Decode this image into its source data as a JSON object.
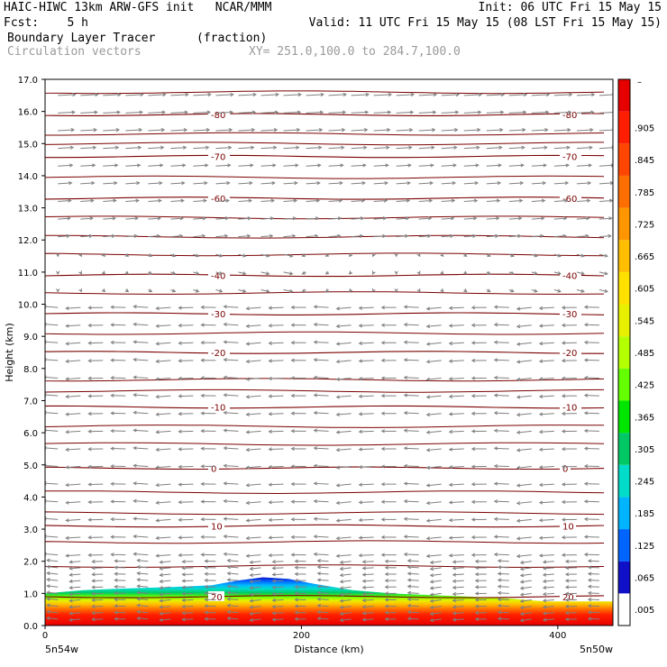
{
  "header": {
    "line1_left": "HAIC-HIWC 13km ARW-GFS init   NCAR/MMM",
    "line1_right": "Init: 06 UTC Fri 15 May 15",
    "line2_left": "Fcst:    5 h",
    "line2_right": "Valid: 11 UTC Fri 15 May 15 (08 LST Fri 15 May 15)",
    "field_name": "Boundary Layer Tracer",
    "field_units": "(fraction)",
    "overlay_name": "Circulation vectors",
    "xy_range": "XY= 251.0,100.0 to 284.7,100.0"
  },
  "chart_data": {
    "type": "heatmap",
    "xlabel": "Distance (km)",
    "ylabel": "Height (km)",
    "xlim": [
      0,
      443
    ],
    "ylim": [
      0,
      17
    ],
    "x_ticks": [
      0,
      200,
      400
    ],
    "y_ticks": [
      "0.0",
      "1.0",
      "2.0",
      "3.0",
      "4.0",
      "5.0",
      "6.0",
      "7.0",
      "8.0",
      "9.0",
      "10.0",
      "11.0",
      "12.0",
      "13.0",
      "14.0",
      "15.0",
      "16.0",
      "17.0"
    ],
    "x_end_labels": [
      "5n54w",
      "5n50w"
    ],
    "colorbar_labels": [
      ".005",
      ".065",
      ".125",
      ".185",
      ".245",
      ".305",
      ".365",
      ".425",
      ".485",
      ".545",
      ".605",
      ".665",
      ".725",
      ".785",
      ".845",
      ".905"
    ],
    "colorbar_top_label": "–",
    "colorbar_colors": [
      "#ffffff",
      "#1010c8",
      "#0064ff",
      "#00b4ff",
      "#00dcc8",
      "#00c864",
      "#00e600",
      "#64ff00",
      "#b4ff00",
      "#e6f000",
      "#ffe100",
      "#ffbe00",
      "#ff9600",
      "#ff6e00",
      "#ff4600",
      "#ff1e00",
      "#e60000"
    ],
    "tracer_top_km": [
      [
        0,
        1.0
      ],
      [
        30,
        1.1
      ],
      [
        60,
        1.15
      ],
      [
        100,
        1.2
      ],
      [
        130,
        1.25
      ],
      [
        150,
        1.4
      ],
      [
        170,
        1.5
      ],
      [
        190,
        1.45
      ],
      [
        210,
        1.3
      ],
      [
        240,
        1.1
      ],
      [
        270,
        1.0
      ],
      [
        300,
        0.95
      ],
      [
        330,
        0.9
      ],
      [
        360,
        0.85
      ],
      [
        390,
        0.75
      ],
      [
        420,
        0.75
      ],
      [
        443,
        0.75
      ]
    ],
    "temperature_contours": [
      {
        "label": "-80",
        "height_km": 15.9
      },
      {
        "label": "-70",
        "height_km": 14.6
      },
      {
        "label": "-60",
        "height_km": 13.3
      },
      {
        "label": "-40",
        "height_km": 10.9
      },
      {
        "label": "-30",
        "height_km": 9.7
      },
      {
        "label": "-20",
        "height_km": 8.5
      },
      {
        "label": "-10",
        "height_km": 6.8
      },
      {
        "label": "0",
        "height_km": 4.9
      },
      {
        "label": "10",
        "height_km": 3.1
      },
      {
        "label": "20",
        "height_km": 0.9
      }
    ],
    "vector_direction_by_height": [
      {
        "from_km": 0,
        "to_km": 2,
        "direction": "west-dominant, variable"
      },
      {
        "from_km": 2,
        "to_km": 10,
        "direction": "westward"
      },
      {
        "from_km": 10,
        "to_km": 12,
        "direction": "weak, mixed"
      },
      {
        "from_km": 12,
        "to_km": 17,
        "direction": "eastward"
      }
    ]
  }
}
